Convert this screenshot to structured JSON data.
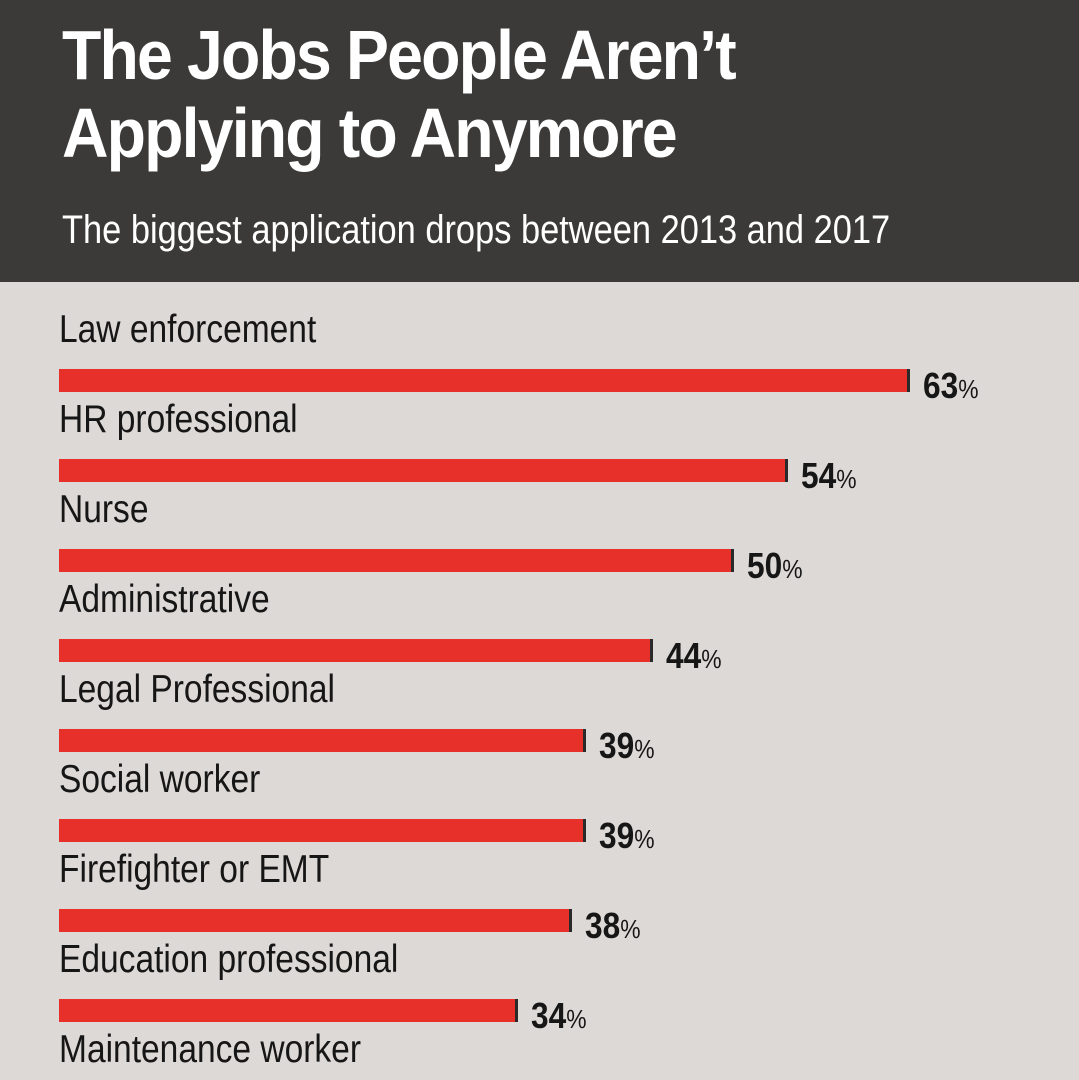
{
  "header": {
    "title": "The Jobs People Aren’t Applying to Anymore",
    "subtitle": "The biggest application drops between 2013 and 2017"
  },
  "colors": {
    "header_background": "#3b3a39",
    "page_background": "#ddd9d6",
    "bar": "#e8302b",
    "bar_end": "#2a2a2a",
    "text": "#161616"
  },
  "chart_data": {
    "type": "bar",
    "orientation": "horizontal",
    "title": "The Jobs People Aren’t Applying to Anymore",
    "subtitle": "The biggest application drops between 2013 and 2017",
    "categories": [
      "Law enforcement",
      "HR professional",
      "Nurse",
      "Administrative",
      "Legal Professional",
      "Social worker",
      "Firefighter or EMT",
      "Education professional",
      "Maintenance worker"
    ],
    "values": [
      63,
      54,
      50,
      44,
      39,
      39,
      38,
      34,
      null
    ],
    "unit": "%",
    "xlim": [
      0,
      63
    ],
    "grid": false,
    "legend": "none"
  }
}
